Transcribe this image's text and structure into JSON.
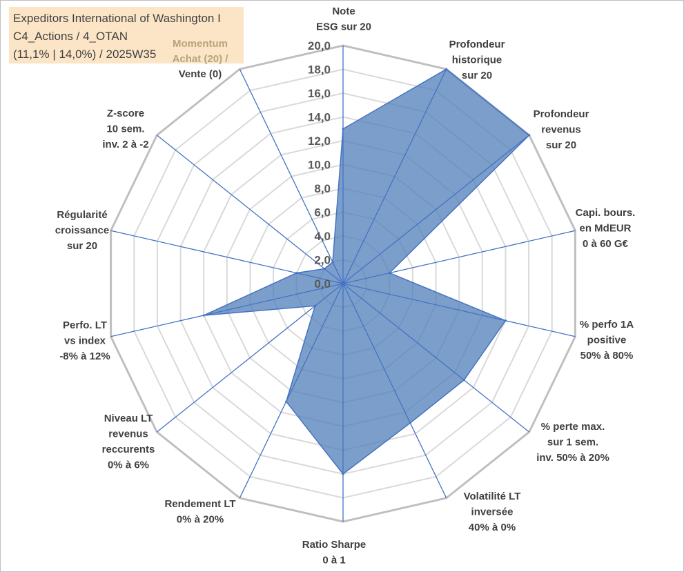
{
  "info": {
    "lines": [
      "Expeditors International of Washington I",
      "C4_Actions / 4_OTAN",
      "(11,1% | 14,0%) / 2025W35"
    ]
  },
  "momentum": {
    "lines": [
      "Momentum",
      "Achat (20) /",
      "Vente (0)"
    ]
  },
  "chart_data": {
    "type": "radar",
    "axes": [
      [
        "Note",
        "ESG sur 20"
      ],
      [
        "Profondeur",
        "historique",
        "sur 20"
      ],
      [
        "Profondeur",
        "revenus",
        "sur 20"
      ],
      [
        "Capi. bours.",
        "en MdEUR",
        "0 à 60 G€"
      ],
      [
        "% perfo 1A",
        "positive",
        "50% à 80%"
      ],
      [
        "% perte max.",
        "sur 1 sem.",
        "inv. 50% à 20%"
      ],
      [
        "Volatilité LT",
        "inversée",
        "40% à 0%"
      ],
      [
        "Ratio Sharpe",
        "0 à 1"
      ],
      [
        "Rendement LT",
        "0% à 20%"
      ],
      [
        "Niveau LT",
        "revenus",
        "reccurents",
        "0% à 6%"
      ],
      [
        "Perfo. LT",
        "vs index",
        "-8% à 12%"
      ],
      [
        "Régularité",
        "croissance",
        "sur 20"
      ],
      [
        "Z-score",
        "10 sem.",
        "inv. 2 à -2"
      ],
      [
        "Momentum",
        "Achat (20) /",
        "Vente (0)"
      ]
    ],
    "values": [
      13.0,
      20.0,
      20.0,
      4.0,
      14.0,
      13.0,
      13.0,
      16.0,
      11.0,
      3.0,
      12.0,
      4.0,
      2.0,
      2.0
    ],
    "rlim": [
      0,
      20
    ],
    "rticks": [
      "0,0",
      "2,0",
      "4,0",
      "6,0",
      "8,0",
      "10,0",
      "12,0",
      "14,0",
      "16,0",
      "18,0",
      "20,0"
    ],
    "colors": {
      "fill": "#4f7fb8",
      "outline": "#4472c4",
      "spoke": "#4472c4",
      "grid": "#bfbfbf",
      "inner_grid": "#d9d9d9"
    }
  }
}
